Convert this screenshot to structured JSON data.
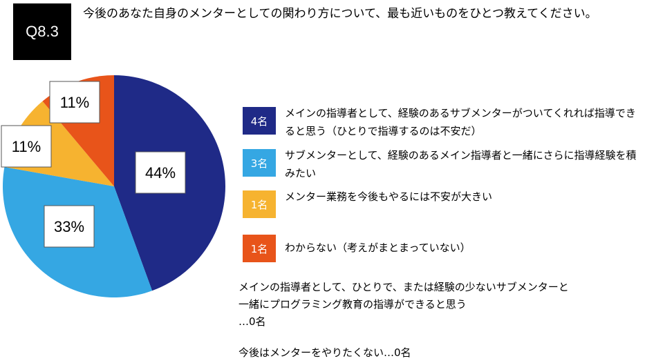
{
  "badge": "Q8.3",
  "question": "今後のあなた自身のメンターとしての関わり方について、最も近いものをひとつ教えてください。",
  "chart_data": {
    "type": "pie",
    "unit": "%",
    "slices": [
      {
        "label": "メインの指導者として、経験のあるサブメンターがついてくれれば指導できると思う（ひとりで指導するのは不安だ）",
        "value": 44,
        "count_label": "4名",
        "color": "#1f2a87"
      },
      {
        "label": "サブメンターとして、経験のあるメイン指導者と一緒にさらに指導経験を積みたい",
        "value": 33,
        "count_label": "3名",
        "color": "#35a7e3"
      },
      {
        "label": "メンター業務を今後もやるには不安が大きい",
        "value": 11,
        "count_label": "1名",
        "color": "#f6b330"
      },
      {
        "label": "わからない（考えがまとまっていない）",
        "value": 11,
        "count_label": "1名",
        "color": "#e8541a"
      }
    ],
    "data_labels": [
      "44%",
      "33%",
      "11%",
      "11%"
    ]
  },
  "notes": [
    "メインの指導者として、ひとりで、または経験の少ないサブメンターと",
    "一緒にプログラミング教育の指導ができると思う",
    "…0名",
    "今後はメンターをやりたくない…0名"
  ]
}
